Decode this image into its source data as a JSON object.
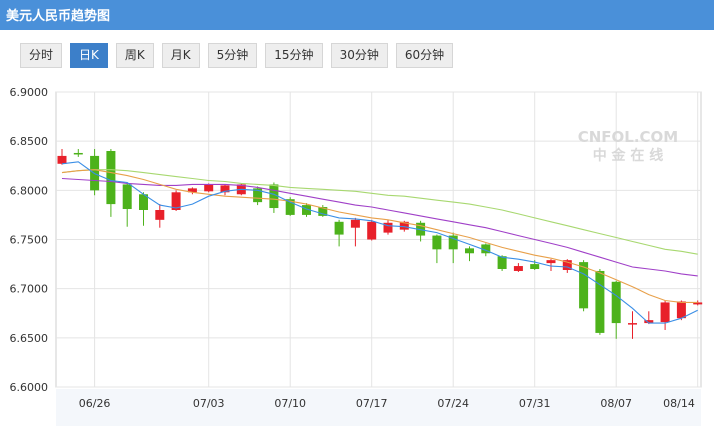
{
  "header": {
    "title": "美元人民币趋势图",
    "bg": "#4a90d9"
  },
  "tabs": [
    {
      "label": "分时",
      "active": false
    },
    {
      "label": "日K",
      "active": true
    },
    {
      "label": "周K",
      "active": false
    },
    {
      "label": "月K",
      "active": false
    },
    {
      "label": "5分钟",
      "active": false
    },
    {
      "label": "15分钟",
      "active": false
    },
    {
      "label": "30分钟",
      "active": false
    },
    {
      "label": "60分钟",
      "active": false
    }
  ],
  "watermark": {
    "brand": "CNFOL.COM",
    "cn": "中 金 在 线"
  },
  "colors": {
    "up": "#e8202a",
    "down": "#4db21b",
    "ma5": "#3a8ee6",
    "ma10": "#e8a04a",
    "ma20": "#a040c8",
    "ma30": "#a8d870"
  },
  "chart_data": {
    "type": "candlestick",
    "ylim": [
      6.6,
      6.9
    ],
    "yticks": [
      "6.9000",
      "6.8500",
      "6.8000",
      "6.7500",
      "6.7000",
      "6.6500",
      "6.6000"
    ],
    "xtick_labels": [
      "06/26",
      "07/03",
      "07/10",
      "07/17",
      "07/24",
      "07/31",
      "08/07",
      "08/14"
    ],
    "candles": [
      {
        "o": 6.827,
        "c": 6.835,
        "h": 6.842,
        "l": 6.826
      },
      {
        "o": 6.838,
        "c": 6.837,
        "h": 6.842,
        "l": 6.834
      },
      {
        "o": 6.835,
        "c": 6.8,
        "h": 6.842,
        "l": 6.795
      },
      {
        "o": 6.84,
        "c": 6.786,
        "h": 6.842,
        "l": 6.773
      },
      {
        "o": 6.806,
        "c": 6.781,
        "h": 6.808,
        "l": 6.763
      },
      {
        "o": 6.796,
        "c": 6.78,
        "h": 6.798,
        "l": 6.764
      },
      {
        "o": 6.77,
        "c": 6.78,
        "h": 6.786,
        "l": 6.762
      },
      {
        "o": 6.78,
        "c": 6.798,
        "h": 6.8,
        "l": 6.779
      },
      {
        "o": 6.798,
        "c": 6.802,
        "h": 6.803,
        "l": 6.796
      },
      {
        "o": 6.799,
        "c": 6.806,
        "h": 6.807,
        "l": 6.798
      },
      {
        "o": 6.798,
        "c": 6.805,
        "h": 6.806,
        "l": 6.795
      },
      {
        "o": 6.796,
        "c": 6.806,
        "h": 6.807,
        "l": 6.795
      },
      {
        "o": 6.802,
        "c": 6.788,
        "h": 6.804,
        "l": 6.785
      },
      {
        "o": 6.806,
        "c": 6.782,
        "h": 6.808,
        "l": 6.777
      },
      {
        "o": 6.791,
        "c": 6.775,
        "h": 6.793,
        "l": 6.774
      },
      {
        "o": 6.785,
        "c": 6.775,
        "h": 6.787,
        "l": 6.773
      },
      {
        "o": 6.783,
        "c": 6.774,
        "h": 6.785,
        "l": 6.773
      },
      {
        "o": 6.768,
        "c": 6.755,
        "h": 6.77,
        "l": 6.743
      },
      {
        "o": 6.762,
        "c": 6.77,
        "h": 6.772,
        "l": 6.743
      },
      {
        "o": 6.75,
        "c": 6.768,
        "h": 6.77,
        "l": 6.749
      },
      {
        "o": 6.757,
        "c": 6.767,
        "h": 6.77,
        "l": 6.755
      },
      {
        "o": 6.76,
        "c": 6.768,
        "h": 6.769,
        "l": 6.758
      },
      {
        "o": 6.767,
        "c": 6.754,
        "h": 6.769,
        "l": 6.748
      },
      {
        "o": 6.754,
        "c": 6.74,
        "h": 6.755,
        "l": 6.726
      },
      {
        "o": 6.754,
        "c": 6.74,
        "h": 6.757,
        "l": 6.726
      },
      {
        "o": 6.741,
        "c": 6.736,
        "h": 6.743,
        "l": 6.728
      },
      {
        "o": 6.745,
        "c": 6.736,
        "h": 6.746,
        "l": 6.733
      },
      {
        "o": 6.733,
        "c": 6.72,
        "h": 6.734,
        "l": 6.718
      },
      {
        "o": 6.718,
        "c": 6.723,
        "h": 6.726,
        "l": 6.717
      },
      {
        "o": 6.725,
        "c": 6.72,
        "h": 6.729,
        "l": 6.719
      },
      {
        "o": 6.726,
        "c": 6.729,
        "h": 6.73,
        "l": 6.718
      },
      {
        "o": 6.719,
        "c": 6.729,
        "h": 6.73,
        "l": 6.716
      },
      {
        "o": 6.727,
        "c": 6.68,
        "h": 6.729,
        "l": 6.677
      },
      {
        "o": 6.718,
        "c": 6.655,
        "h": 6.72,
        "l": 6.653
      },
      {
        "o": 6.707,
        "c": 6.665,
        "h": 6.708,
        "l": 6.649
      },
      {
        "o": 6.665,
        "c": 6.665,
        "h": 6.677,
        "l": 6.649
      },
      {
        "o": 6.665,
        "c": 6.668,
        "h": 6.677,
        "l": 6.664
      },
      {
        "o": 6.666,
        "c": 6.686,
        "h": 6.688,
        "l": 6.658
      },
      {
        "o": 6.67,
        "c": 6.687,
        "h": 6.688,
        "l": 6.668
      },
      {
        "o": 6.684,
        "c": 6.686,
        "h": 6.688,
        "l": 6.683
      }
    ],
    "ma5": [
      6.827,
      6.829,
      6.817,
      6.81,
      6.808,
      6.796,
      6.785,
      6.782,
      6.786,
      6.794,
      6.799,
      6.801,
      6.8,
      6.796,
      6.788,
      6.781,
      6.776,
      6.772,
      6.771,
      6.769,
      6.764,
      6.763,
      6.76,
      6.757,
      6.751,
      6.745,
      6.739,
      6.732,
      6.73,
      6.727,
      6.723,
      6.722,
      6.715,
      6.704,
      6.693,
      6.68,
      6.665,
      6.665,
      6.67,
      6.678
    ],
    "ma10": [
      6.818,
      6.82,
      6.821,
      6.818,
      6.815,
      6.811,
      6.806,
      6.801,
      6.798,
      6.796,
      6.794,
      6.793,
      6.792,
      6.791,
      6.789,
      6.786,
      6.782,
      6.778,
      6.775,
      6.772,
      6.77,
      6.767,
      6.764,
      6.76,
      6.756,
      6.752,
      6.747,
      6.742,
      6.738,
      6.734,
      6.731,
      6.727,
      6.722,
      6.716,
      6.709,
      6.702,
      6.694,
      6.688,
      6.686,
      6.686
    ],
    "ma20": [
      6.812,
      6.811,
      6.81,
      6.809,
      6.807,
      6.806,
      6.805,
      6.805,
      6.806,
      6.806,
      6.806,
      6.805,
      6.803,
      6.8,
      6.797,
      6.794,
      6.791,
      6.788,
      6.785,
      6.783,
      6.78,
      6.777,
      6.774,
      6.771,
      6.768,
      6.765,
      6.762,
      6.758,
      6.754,
      6.75,
      6.746,
      6.742,
      6.737,
      6.732,
      6.727,
      6.722,
      6.72,
      6.718,
      6.715,
      6.713
    ],
    "ma30": [
      6.818,
      6.82,
      6.821,
      6.821,
      6.82,
      6.818,
      6.816,
      6.814,
      6.812,
      6.81,
      6.809,
      6.807,
      6.806,
      6.805,
      6.803,
      6.802,
      6.801,
      6.8,
      6.799,
      6.797,
      6.795,
      6.794,
      6.792,
      6.79,
      6.788,
      6.786,
      6.783,
      6.78,
      6.776,
      6.772,
      6.768,
      6.764,
      6.76,
      6.756,
      6.752,
      6.748,
      6.744,
      6.74,
      6.738,
      6.735
    ]
  }
}
